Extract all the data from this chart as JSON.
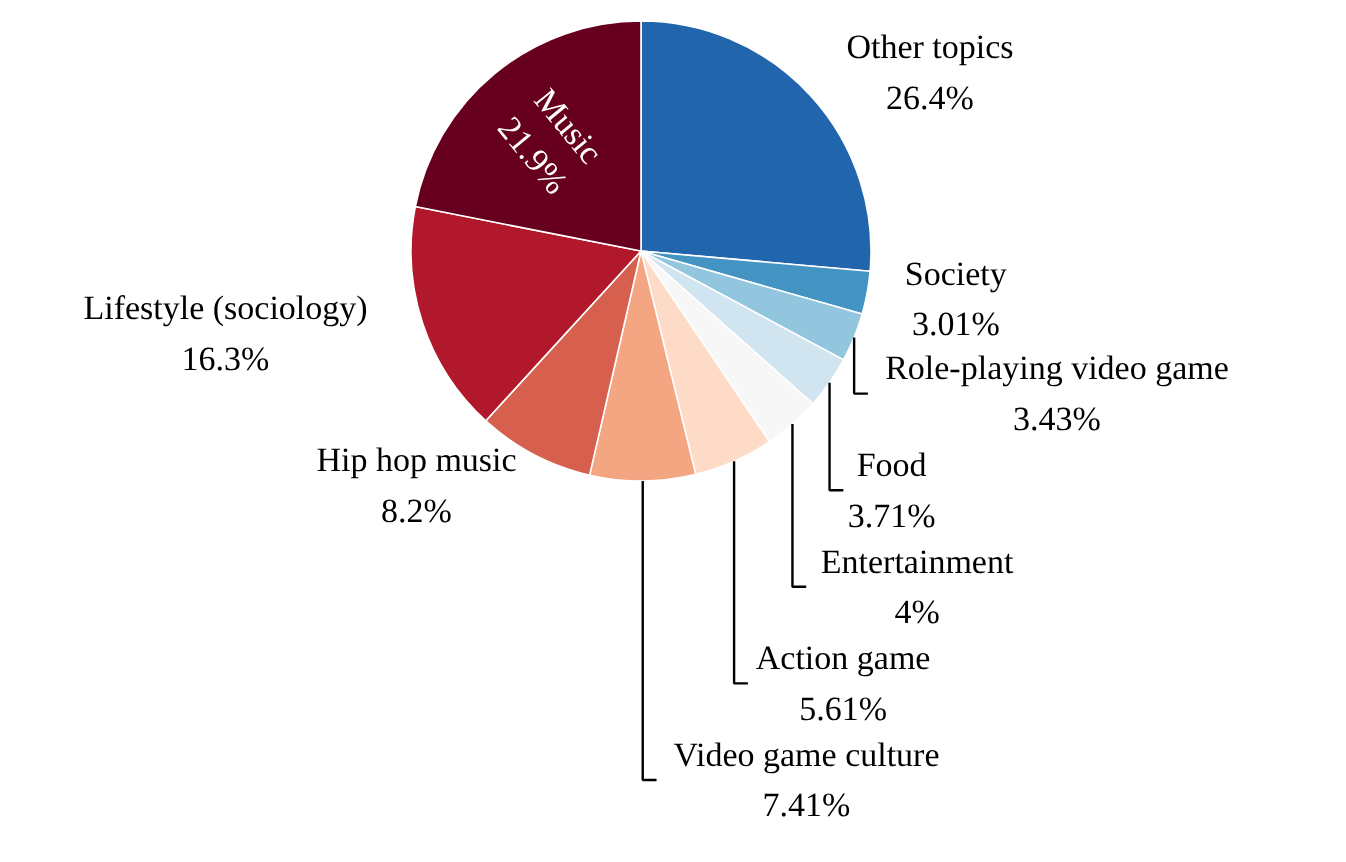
{
  "chart_data": {
    "type": "pie",
    "categories": [
      "Other topics",
      "Society",
      "Role-playing video game",
      "Food",
      "Entertainment",
      "Action game",
      "Video game culture",
      "Hip hop music",
      "Lifestyle (sociology)",
      "Music"
    ],
    "values": [
      26.4,
      3.01,
      3.43,
      3.71,
      4,
      5.61,
      7.41,
      8.2,
      16.3,
      21.9
    ],
    "value_labels": [
      "26.4%",
      "3.01%",
      "3.43%",
      "3.71%",
      "4%",
      "5.61%",
      "7.41%",
      "8.2%",
      "16.3%",
      "21.9%"
    ],
    "colors": [
      "#2166ac",
      "#4393c3",
      "#92c5de",
      "#d1e5f0",
      "#f7f7f7",
      "#fddbc7",
      "#f4a582",
      "#d6604d",
      "#b2182b",
      "#67001f"
    ]
  }
}
